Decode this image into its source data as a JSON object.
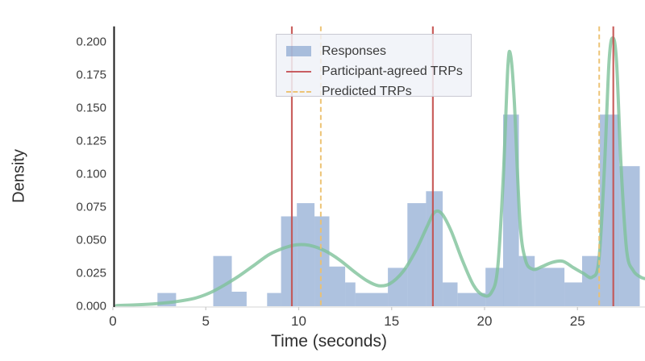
{
  "chart_data": {
    "type": "bar",
    "subtype": "density-histogram-with-kde",
    "title": "",
    "xlabel": "Time (seconds)",
    "ylabel": "Density",
    "xlim": [
      0,
      28.6
    ],
    "ylim": [
      0,
      0.2117
    ],
    "x_ticks": [
      0,
      5,
      10,
      15,
      20,
      25
    ],
    "y_tick_labels": [
      "0.000",
      "0.025",
      "0.050",
      "0.075",
      "0.100",
      "0.125",
      "0.150",
      "0.175",
      "0.200"
    ],
    "grid": false,
    "legend_position": "upper center-left",
    "legend_entries": [
      "Responses",
      "Participant-agreed TRPs",
      "Predicted TRPs"
    ],
    "bars_series_name": "Responses",
    "bars": [
      {
        "t0": 2.4,
        "t1": 3.4,
        "density": 0.01
      },
      {
        "t0": 5.4,
        "t1": 6.4,
        "density": 0.038
      },
      {
        "t0": 6.4,
        "t1": 7.2,
        "density": 0.011
      },
      {
        "t0": 8.3,
        "t1": 9.05,
        "density": 0.01
      },
      {
        "t0": 9.05,
        "t1": 9.9,
        "density": 0.068
      },
      {
        "t0": 9.9,
        "t1": 10.85,
        "density": 0.078
      },
      {
        "t0": 10.85,
        "t1": 11.65,
        "density": 0.068
      },
      {
        "t0": 11.65,
        "t1": 12.5,
        "density": 0.03
      },
      {
        "t0": 12.5,
        "t1": 13.05,
        "density": 0.018
      },
      {
        "t0": 13.05,
        "t1": 14.8,
        "density": 0.01
      },
      {
        "t0": 14.8,
        "t1": 15.85,
        "density": 0.029
      },
      {
        "t0": 15.85,
        "t1": 16.85,
        "density": 0.078
      },
      {
        "t0": 16.85,
        "t1": 17.75,
        "density": 0.087
      },
      {
        "t0": 17.75,
        "t1": 18.55,
        "density": 0.018
      },
      {
        "t0": 18.55,
        "t1": 20.05,
        "density": 0.01
      },
      {
        "t0": 20.05,
        "t1": 21.0,
        "density": 0.029
      },
      {
        "t0": 21.0,
        "t1": 21.85,
        "density": 0.145
      },
      {
        "t0": 21.85,
        "t1": 22.7,
        "density": 0.038
      },
      {
        "t0": 22.7,
        "t1": 24.3,
        "density": 0.029
      },
      {
        "t0": 24.3,
        "t1": 25.25,
        "density": 0.018
      },
      {
        "t0": 25.25,
        "t1": 26.2,
        "density": 0.038
      },
      {
        "t0": 26.2,
        "t1": 27.25,
        "density": 0.145
      },
      {
        "t0": 27.25,
        "t1": 28.35,
        "density": 0.106
      }
    ],
    "kde_curve": {
      "name": "density-estimate",
      "points": [
        [
          0.2,
          0.0005
        ],
        [
          1.2,
          0.001
        ],
        [
          2.4,
          0.002
        ],
        [
          3.4,
          0.0035
        ],
        [
          4.4,
          0.006
        ],
        [
          5.2,
          0.01
        ],
        [
          6.0,
          0.016
        ],
        [
          6.8,
          0.023
        ],
        [
          7.6,
          0.031
        ],
        [
          8.4,
          0.039
        ],
        [
          9.2,
          0.044
        ],
        [
          9.9,
          0.0465
        ],
        [
          10.6,
          0.046
        ],
        [
          11.4,
          0.042
        ],
        [
          12.2,
          0.035
        ],
        [
          13.0,
          0.026
        ],
        [
          13.7,
          0.019
        ],
        [
          14.3,
          0.0155
        ],
        [
          14.9,
          0.017
        ],
        [
          15.6,
          0.026
        ],
        [
          16.3,
          0.042
        ],
        [
          16.9,
          0.06
        ],
        [
          17.3,
          0.071
        ],
        [
          17.7,
          0.07
        ],
        [
          18.2,
          0.057
        ],
        [
          18.8,
          0.035
        ],
        [
          19.4,
          0.016
        ],
        [
          19.9,
          0.0085
        ],
        [
          20.35,
          0.01
        ],
        [
          20.7,
          0.028
        ],
        [
          21.0,
          0.095
        ],
        [
          21.25,
          0.18
        ],
        [
          21.4,
          0.19
        ],
        [
          21.6,
          0.155
        ],
        [
          21.9,
          0.065
        ],
        [
          22.2,
          0.035
        ],
        [
          22.6,
          0.028
        ],
        [
          23.1,
          0.03
        ],
        [
          23.6,
          0.033
        ],
        [
          24.2,
          0.034
        ],
        [
          24.8,
          0.029
        ],
        [
          25.3,
          0.025
        ],
        [
          25.8,
          0.022
        ],
        [
          26.15,
          0.035
        ],
        [
          26.45,
          0.105
        ],
        [
          26.7,
          0.185
        ],
        [
          26.9,
          0.203
        ],
        [
          27.1,
          0.185
        ],
        [
          27.35,
          0.105
        ],
        [
          27.65,
          0.042
        ],
        [
          28.0,
          0.027
        ],
        [
          28.4,
          0.022
        ],
        [
          28.6,
          0.021
        ]
      ]
    },
    "participant_agreed_trps_seconds": [
      9.63,
      17.22,
      26.93
    ],
    "predicted_trps_seconds": [
      11.19,
      26.17
    ],
    "colors": {
      "bar_fill": "rgba(107,144,196,0.55)",
      "kde_stroke": "#7ec29a",
      "participant_trp": "#c4504e",
      "predicted_trp": "#ecc170",
      "axis_spine": "#1a1a1a",
      "baseline": "#e3e3e3",
      "tick_text": "#3d3d3d"
    }
  },
  "legend": {
    "items": [
      {
        "label": "Responses",
        "swatch": "blue-patch"
      },
      {
        "label": "Participant-agreed TRPs",
        "swatch": "red-solid-line"
      },
      {
        "label": "Predicted TRPs",
        "swatch": "orange-dashed-line"
      }
    ]
  }
}
